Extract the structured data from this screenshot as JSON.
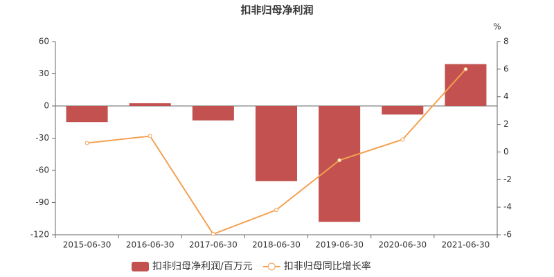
{
  "chart_data": {
    "type": "bar_line",
    "title": "扣非归母净利润",
    "categories": [
      "2015-06-30",
      "2016-06-30",
      "2017-06-30",
      "2018-06-30",
      "2019-06-30",
      "2020-06-30",
      "2021-06-30"
    ],
    "series": [
      {
        "name": "扣非归母净利润/百万元",
        "type": "bar",
        "color": "#c2514f",
        "values": [
          -15,
          2.5,
          -13.5,
          -70,
          -108,
          -8,
          39
        ]
      },
      {
        "name": "扣非归母同比增长率",
        "type": "line",
        "axis": "y2",
        "color": "#f4a04f",
        "values": [
          0.65,
          1.15,
          -5.95,
          -4.2,
          -0.6,
          0.9,
          6.0
        ]
      }
    ],
    "ylim": [
      -120,
      60
    ],
    "yticks": [
      -120,
      -90,
      -60,
      -30,
      0,
      30,
      60
    ],
    "y2lim": [
      -6,
      8
    ],
    "y2ticks": [
      -6,
      -4,
      -2,
      0,
      2,
      4,
      6,
      8
    ],
    "y2label": "%",
    "grid": false,
    "legend": "bottom"
  }
}
